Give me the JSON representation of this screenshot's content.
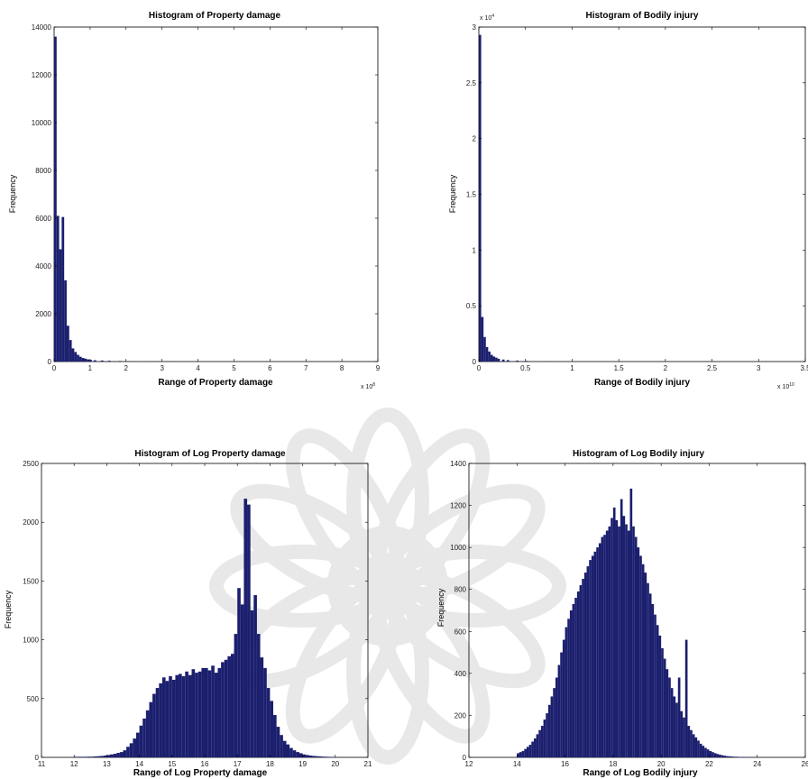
{
  "colors": {
    "bar": "#1b1f6e",
    "axis": "#000000",
    "background": "#ffffff",
    "watermark": "#d6d6d6"
  },
  "watermark_icon": "flower-seal-icon",
  "chart_data": [
    {
      "type": "bar",
      "title": "Histogram of Property damage",
      "xlabel": "Range of Property damage",
      "ylabel": "Frequency",
      "x_multiplier": "x 10",
      "x_multiplier_exp": "8",
      "xlim": [
        0,
        9
      ],
      "ylim": [
        0,
        14000
      ],
      "xticks": [
        "0",
        "1",
        "2",
        "3",
        "4",
        "5",
        "6",
        "7",
        "8",
        "9"
      ],
      "yticks": [
        "0",
        "2000",
        "4000",
        "6000",
        "8000",
        "10000",
        "12000",
        "14000"
      ],
      "bin_width": 0.07,
      "x": [
        0.0,
        0.07,
        0.14,
        0.21,
        0.28,
        0.35,
        0.42,
        0.49,
        0.56,
        0.63,
        0.7,
        0.77,
        0.84,
        0.91,
        0.98,
        1.1,
        1.3,
        1.5,
        1.8,
        2.2,
        2.7,
        3.3,
        4.0
      ],
      "values": [
        13600,
        6100,
        4700,
        6050,
        3400,
        1500,
        900,
        550,
        400,
        280,
        200,
        150,
        120,
        90,
        70,
        55,
        45,
        35,
        25,
        18,
        12,
        8,
        5
      ]
    },
    {
      "type": "bar",
      "title": "Histogram of Bodily injury",
      "xlabel": "Range of Bodily injury",
      "ylabel": "Frequency",
      "x_multiplier": "x 10",
      "x_multiplier_exp": "10",
      "y_multiplier": "x 10",
      "y_multiplier_exp": "4",
      "xlim": [
        0,
        3.5
      ],
      "ylim": [
        0,
        3
      ],
      "xticks": [
        "0",
        "0.5",
        "1",
        "1.5",
        "2",
        "2.5",
        "3",
        "3.5"
      ],
      "yticks": [
        "0",
        "0.5",
        "1",
        "1.5",
        "2",
        "2.5",
        "3"
      ],
      "bin_width": 0.025,
      "x": [
        0.0,
        0.025,
        0.05,
        0.075,
        0.1,
        0.125,
        0.15,
        0.175,
        0.2,
        0.25,
        0.3,
        0.4,
        0.5,
        0.7,
        1.0,
        1.5,
        2.0
      ],
      "values": [
        2.93,
        0.4,
        0.22,
        0.13,
        0.09,
        0.06,
        0.045,
        0.035,
        0.025,
        0.018,
        0.013,
        0.009,
        0.006,
        0.004,
        0.003,
        0.002,
        0.001
      ]
    },
    {
      "type": "bar",
      "title": "Histogram of Log Property damage",
      "xlabel": "Range of Log Property damage",
      "ylabel": "Frequency",
      "xlim": [
        11,
        21
      ],
      "ylim": [
        0,
        2500
      ],
      "xticks": [
        "11",
        "12",
        "13",
        "14",
        "15",
        "16",
        "17",
        "18",
        "19",
        "20",
        "21"
      ],
      "yticks": [
        "0",
        "500",
        "1000",
        "1500",
        "2000",
        "2500"
      ],
      "bin_width": 0.1,
      "x": [
        12.0,
        12.1,
        12.2,
        12.3,
        12.4,
        12.5,
        12.6,
        12.7,
        12.8,
        12.9,
        13.0,
        13.1,
        13.2,
        13.3,
        13.4,
        13.5,
        13.6,
        13.7,
        13.8,
        13.9,
        14.0,
        14.1,
        14.2,
        14.3,
        14.4,
        14.5,
        14.6,
        14.7,
        14.8,
        14.9,
        15.0,
        15.1,
        15.2,
        15.3,
        15.4,
        15.5,
        15.6,
        15.7,
        15.8,
        15.9,
        16.0,
        16.1,
        16.2,
        16.3,
        16.4,
        16.5,
        16.6,
        16.7,
        16.8,
        16.9,
        17.0,
        17.1,
        17.2,
        17.3,
        17.4,
        17.5,
        17.6,
        17.7,
        17.8,
        17.9,
        18.0,
        18.1,
        18.2,
        18.3,
        18.4,
        18.5,
        18.6,
        18.7,
        18.8,
        18.9,
        19.0,
        19.1,
        19.2,
        19.3,
        19.4,
        19.5,
        19.6,
        19.7,
        19.8,
        19.9,
        20.0,
        20.1
      ],
      "values": [
        5,
        5,
        5,
        5,
        6,
        6,
        8,
        10,
        12,
        15,
        20,
        25,
        30,
        38,
        45,
        60,
        90,
        120,
        160,
        210,
        270,
        330,
        400,
        470,
        540,
        590,
        630,
        680,
        650,
        690,
        660,
        700,
        710,
        690,
        730,
        700,
        750,
        720,
        730,
        760,
        760,
        740,
        780,
        720,
        760,
        810,
        830,
        860,
        880,
        1050,
        1440,
        1300,
        2200,
        2150,
        1250,
        1380,
        1050,
        850,
        760,
        590,
        480,
        360,
        260,
        190,
        140,
        110,
        80,
        60,
        45,
        35,
        25,
        20,
        15,
        12,
        10,
        8,
        6,
        5,
        4,
        3,
        2,
        2
      ]
    },
    {
      "type": "bar",
      "title": "Histogram of Log Bodily injury",
      "xlabel": "Range of Log Bodily injury",
      "ylabel": "Frequency",
      "xlim": [
        12,
        26
      ],
      "ylim": [
        0,
        1400
      ],
      "xticks": [
        "12",
        "14",
        "16",
        "18",
        "20",
        "22",
        "24",
        "26"
      ],
      "yticks": [
        "0",
        "200",
        "400",
        "600",
        "800",
        "1000",
        "1200",
        "1400"
      ],
      "bin_width": 0.1,
      "x": [
        14.0,
        14.1,
        14.2,
        14.3,
        14.4,
        14.5,
        14.6,
        14.7,
        14.8,
        14.9,
        15.0,
        15.1,
        15.2,
        15.3,
        15.4,
        15.5,
        15.6,
        15.7,
        15.8,
        15.9,
        16.0,
        16.1,
        16.2,
        16.3,
        16.4,
        16.5,
        16.6,
        16.7,
        16.8,
        16.9,
        17.0,
        17.1,
        17.2,
        17.3,
        17.4,
        17.5,
        17.6,
        17.7,
        17.8,
        17.9,
        18.0,
        18.1,
        18.2,
        18.3,
        18.4,
        18.5,
        18.6,
        18.7,
        18.8,
        18.9,
        19.0,
        19.1,
        19.2,
        19.3,
        19.4,
        19.5,
        19.6,
        19.7,
        19.8,
        19.9,
        20.0,
        20.1,
        20.2,
        20.3,
        20.4,
        20.5,
        20.6,
        20.7,
        20.8,
        20.9,
        21.0,
        21.1,
        21.2,
        21.3,
        21.4,
        21.5,
        21.6,
        21.7,
        21.8,
        21.9,
        22.0,
        22.1,
        22.2,
        22.3,
        22.4,
        22.5,
        22.6,
        22.7,
        22.8,
        22.9,
        23.0,
        23.1,
        23.2,
        23.3,
        23.4,
        23.5,
        23.6,
        23.7,
        23.8
      ],
      "values": [
        20,
        25,
        30,
        40,
        50,
        60,
        75,
        90,
        110,
        130,
        150,
        180,
        210,
        250,
        290,
        330,
        380,
        440,
        500,
        560,
        620,
        660,
        700,
        730,
        760,
        790,
        820,
        850,
        880,
        910,
        940,
        960,
        980,
        1000,
        1020,
        1050,
        1060,
        1080,
        1100,
        1140,
        1190,
        1130,
        1100,
        1230,
        1150,
        1110,
        1080,
        1280,
        1100,
        1050,
        1000,
        960,
        920,
        880,
        830,
        780,
        730,
        680,
        630,
        580,
        520,
        470,
        420,
        380,
        330,
        290,
        260,
        380,
        220,
        190,
        560,
        150,
        130,
        110,
        95,
        80,
        65,
        55,
        45,
        38,
        30,
        25,
        20,
        16,
        13,
        10,
        8,
        6,
        5,
        4,
        3,
        3,
        2,
        2,
        2,
        1,
        1,
        1,
        1
      ]
    }
  ]
}
